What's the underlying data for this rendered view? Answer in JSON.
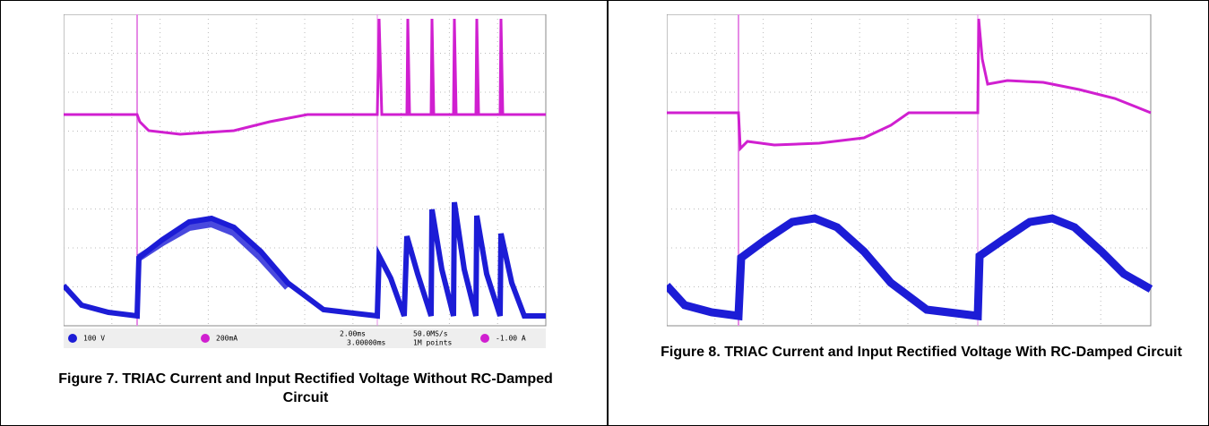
{
  "figures": [
    {
      "caption": "Figure 7. TRIAC Current and Input Rectified Voltage Without RC-Damped Circuit",
      "status": {
        "ch1": "100 V",
        "ch2": "200mA",
        "timebase": "2.00ms",
        "delay": "3.00000ms",
        "rate": "50.0MS/s",
        "points": "1M points",
        "trigger": "-1.00 A"
      }
    },
    {
      "caption": "Figure 8. TRIAC Current and Input Rectified Voltage With RC-Damped Circuit"
    }
  ]
}
